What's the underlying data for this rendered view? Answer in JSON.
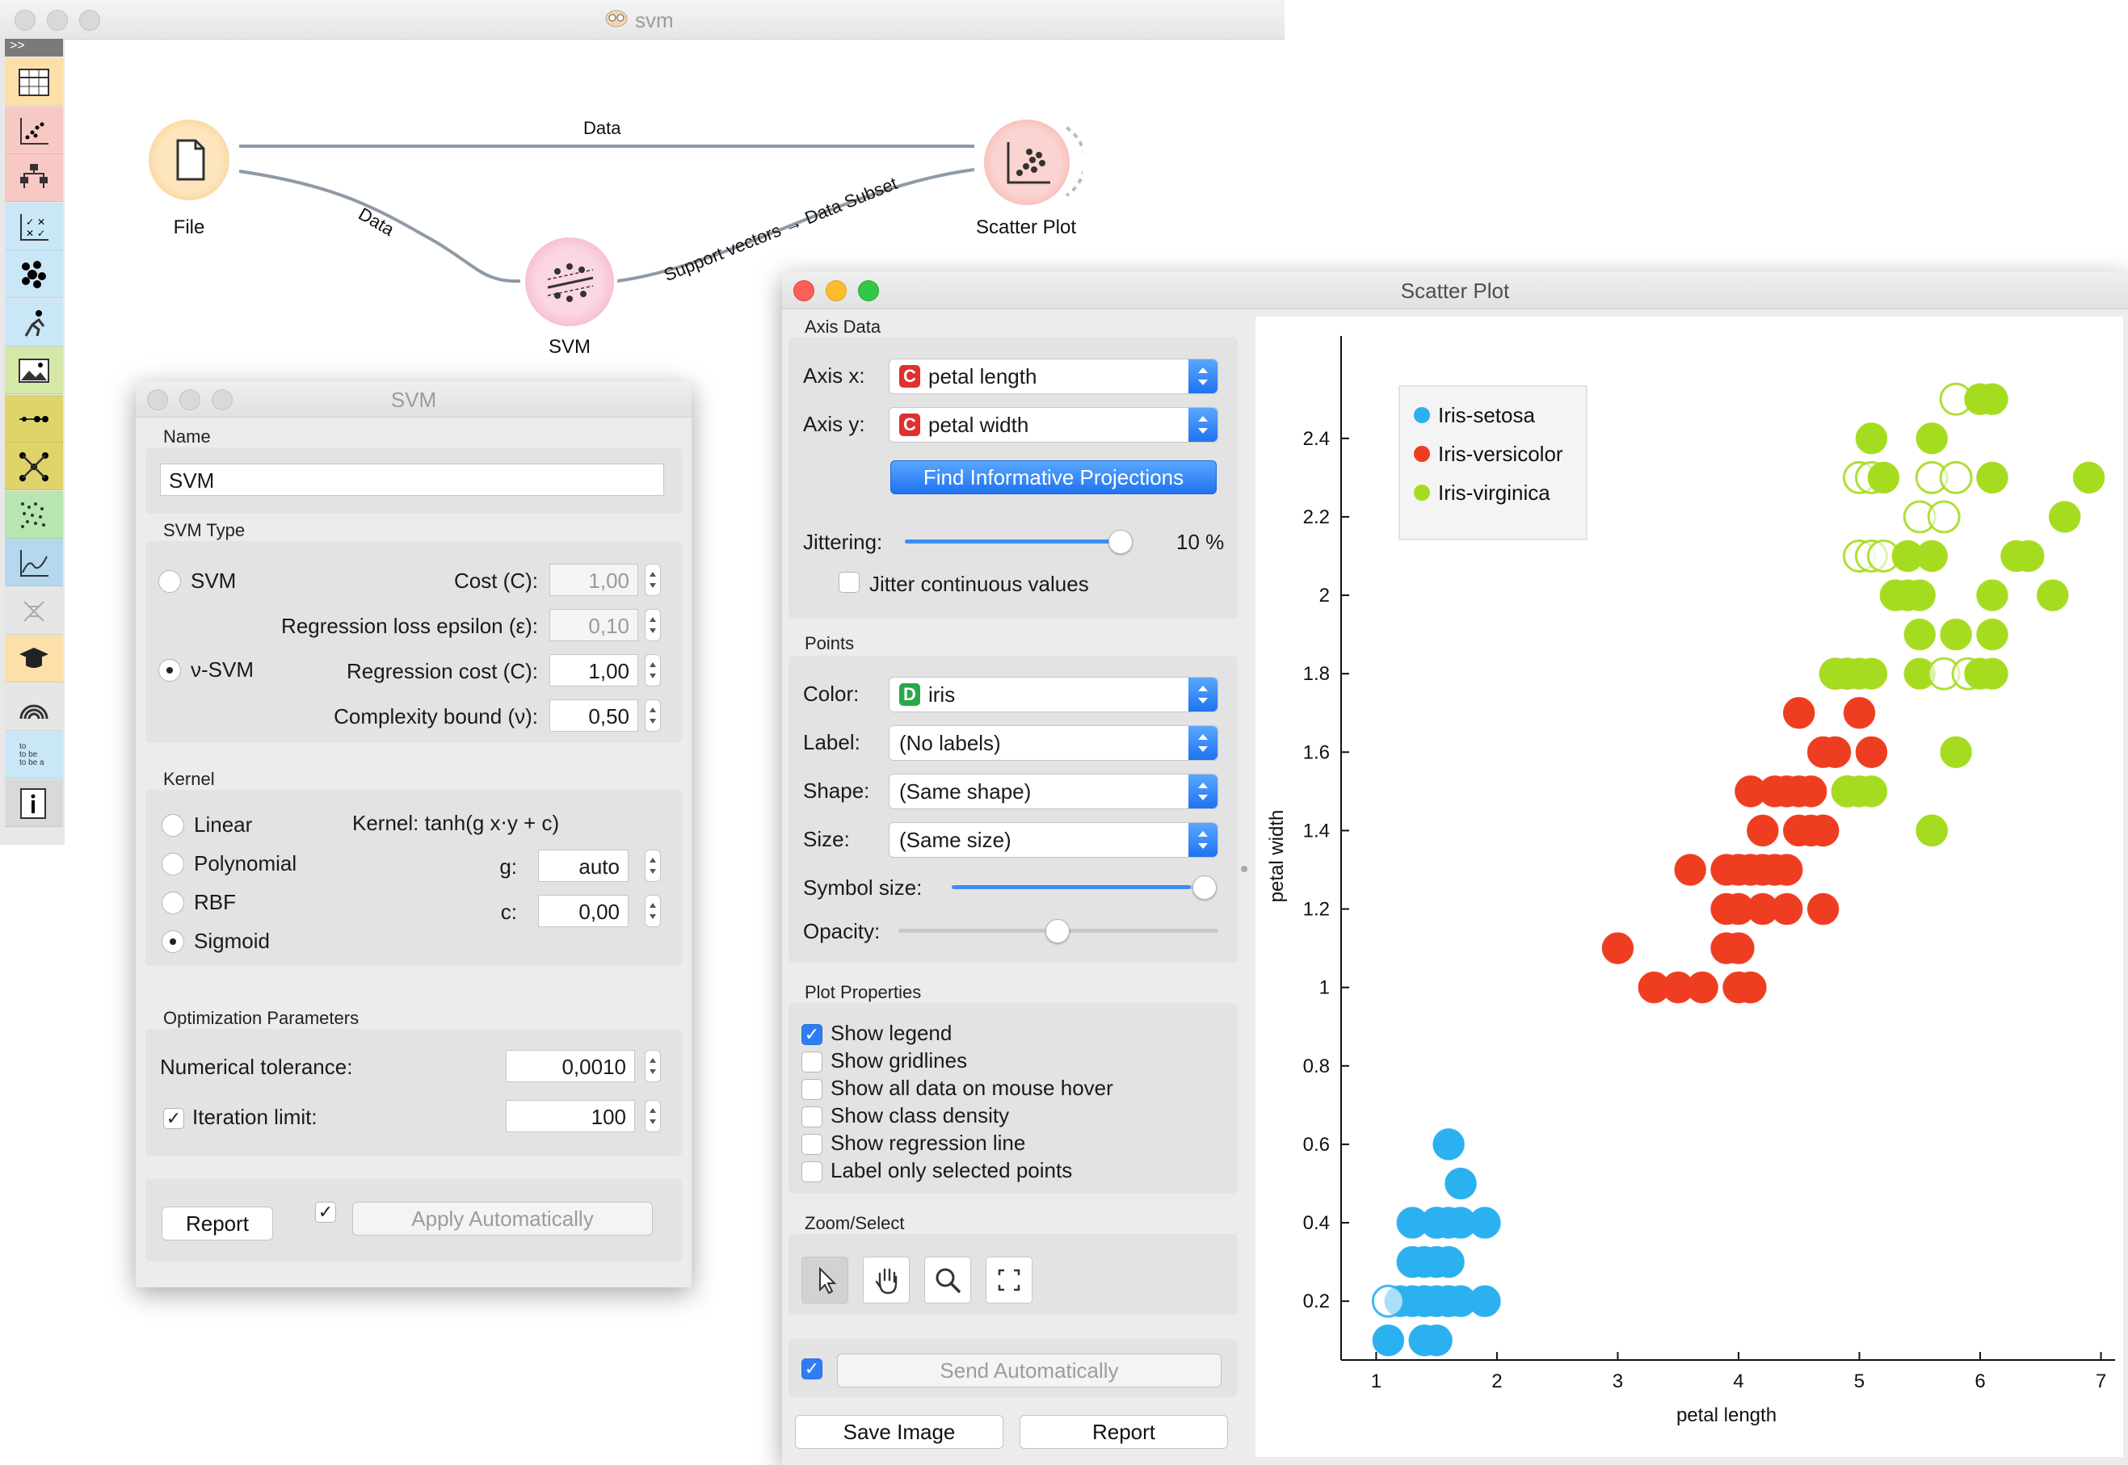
{
  "canvas_window": {
    "title": "svm",
    "nodes": [
      {
        "id": "file",
        "label": "File"
      },
      {
        "id": "svm",
        "label": "SVM"
      },
      {
        "id": "scatter",
        "label": "Scatter Plot"
      }
    ],
    "links": {
      "file_scatter": "Data",
      "file_svm": "Data",
      "svm_scatter": "Support vectors → Data Subset"
    },
    "toolbox_icons": [
      "table-icon",
      "scatter-icon",
      "tree-icon",
      "confusion-icon",
      "bubble-icon",
      "person-icon",
      "image-icon",
      "line-icon",
      "network-icon",
      "dots-icon",
      "line-chart-icon",
      "dna-icon",
      "graduation-cap-icon",
      "rainbow-icon",
      "text-icon",
      "info-icon"
    ],
    "toolbox_colors": [
      "#fbe0a9",
      "#f8c8c5",
      "#f8c8c5",
      "#c9e7f7",
      "#c9e7f7",
      "#c9e7f7",
      "#d6e8a8",
      "#ded46a",
      "#ded46a",
      "#b7e6b0",
      "#b5d8ee",
      "#e6e6e6",
      "#fbe0a9",
      "#e6e6e6",
      "#c9e7f7",
      "#d9d9d9"
    ]
  },
  "svm_dialog": {
    "title": "SVM",
    "name_section": "Name",
    "name_value": "SVM",
    "type_section": "SVM Type",
    "svm_label": "SVM",
    "nu_svm_label": "ν-SVM",
    "selected_type": "ν-SVM",
    "cost_label": "Cost (C):",
    "cost_value": "1,00",
    "epsilon_label": "Regression loss epsilon (ε):",
    "epsilon_value": "0,10",
    "reg_cost_label": "Regression cost (C):",
    "reg_cost_value": "1,00",
    "nu_label": "Complexity bound (ν):",
    "nu_value": "0,50",
    "kernel_section": "Kernel",
    "kernels": [
      "Linear",
      "Polynomial",
      "RBF",
      "Sigmoid"
    ],
    "selected_kernel": "Sigmoid",
    "kernel_formula": "Kernel: tanh(g x⋅y + c)",
    "g_label": "g:",
    "g_value": "auto",
    "c_label": "c:",
    "c_value": "0,00",
    "opt_section": "Optimization Parameters",
    "tol_label": "Numerical tolerance:",
    "tol_value": "0,0010",
    "iter_label": "Iteration limit:",
    "iter_checked": "✓",
    "iter_value": "100",
    "report_btn": "Report",
    "apply_check": "✓",
    "apply_btn": "Apply Automatically"
  },
  "scatter_dialog": {
    "title": "Scatter Plot",
    "axis_section": "Axis Data",
    "axis_x_label": "Axis x:",
    "axis_x_value": "petal length",
    "axis_y_label": "Axis y:",
    "axis_y_value": "petal width",
    "continuous_badge": "C",
    "discrete_badge": "D",
    "find_btn": "Find Informative Projections",
    "jitter_label": "Jittering:",
    "jitter_value": "10 %",
    "jitter_cont_label": "Jitter continuous values",
    "points_section": "Points",
    "color_label": "Color:",
    "color_value": "iris",
    "label_label": "Label:",
    "label_value": "(No labels)",
    "shape_label": "Shape:",
    "shape_value": "(Same shape)",
    "size_label": "Size:",
    "size_value": "(Same size)",
    "symbol_size_label": "Symbol size:",
    "opacity_label": "Opacity:",
    "plot_props_section": "Plot Properties",
    "plot_options": [
      {
        "label": "Show legend",
        "checked": true
      },
      {
        "label": "Show gridlines",
        "checked": false
      },
      {
        "label": "Show all data on mouse hover",
        "checked": false
      },
      {
        "label": "Show class density",
        "checked": false
      },
      {
        "label": "Show regression line",
        "checked": false
      },
      {
        "label": "Label only selected points",
        "checked": false
      }
    ],
    "zoom_section": "Zoom/Select",
    "zoom_tools": [
      "pointer-icon",
      "hand-icon",
      "zoom-icon",
      "fit-icon"
    ],
    "send_check": "✓",
    "send_btn": "Send Automatically",
    "save_btn": "Save Image",
    "report_btn": "Report"
  },
  "chart_data": {
    "type": "scatter",
    "xlabel": "petal length",
    "ylabel": "petal width",
    "xlim": [
      0.75,
      7.05
    ],
    "ylim": [
      0.05,
      2.62
    ],
    "xticks": [
      1,
      2,
      3,
      4,
      5,
      6,
      7
    ],
    "yticks": [
      0.2,
      0.4,
      0.6,
      0.8,
      1,
      1.2,
      1.4,
      1.6,
      1.8,
      2,
      2.2,
      2.4
    ],
    "ytick_labels": [
      "0.2",
      "0.4",
      "0.6",
      "0.8",
      "1",
      "1.2",
      "1.4",
      "1.6",
      "1.8",
      "2",
      "2.2",
      "2.4"
    ],
    "legend": "top-left",
    "grid": false,
    "series": [
      {
        "name": "Iris-setosa",
        "color": "#2bb0f0",
        "x": [
          1.1,
          1.2,
          1.3,
          1.4,
          1.4,
          1.5,
          1.6,
          1.7,
          1.9,
          1.3,
          1.4,
          1.5,
          1.6,
          1.5,
          1.7,
          1.3,
          1.5,
          1.6,
          1.9,
          1.6,
          1.7,
          1.6,
          1.1,
          1.4,
          1.5
        ],
        "y": [
          0.1,
          0.2,
          0.2,
          0.2,
          0.2,
          0.2,
          0.2,
          0.2,
          0.2,
          0.3,
          0.3,
          0.3,
          0.3,
          0.4,
          0.4,
          0.4,
          0.4,
          0.4,
          0.4,
          0.6,
          0.5,
          0.2,
          0.2,
          0.1,
          0.1
        ],
        "open": [
          false,
          false,
          false,
          false,
          false,
          false,
          false,
          false,
          false,
          false,
          false,
          false,
          false,
          false,
          false,
          false,
          false,
          false,
          false,
          false,
          false,
          false,
          true,
          false,
          false
        ]
      },
      {
        "name": "Iris-versicolor",
        "color": "#ee3d20",
        "x": [
          3.0,
          3.3,
          3.5,
          3.7,
          4.0,
          4.1,
          3.9,
          4.0,
          4.3,
          3.6,
          3.9,
          4.0,
          4.1,
          4.2,
          4.4,
          3.9,
          4.0,
          4.2,
          4.4,
          4.7,
          4.2,
          4.5,
          4.6,
          4.7,
          4.1,
          4.3,
          4.4,
          4.5,
          4.6,
          4.7,
          4.8,
          4.9,
          4.5,
          4.7,
          4.9,
          5.0,
          5.1,
          4.8
        ],
        "y": [
          1.1,
          1.0,
          1.0,
          1.0,
          1.0,
          1.0,
          1.1,
          1.1,
          1.3,
          1.3,
          1.3,
          1.3,
          1.3,
          1.3,
          1.3,
          1.2,
          1.2,
          1.2,
          1.2,
          1.2,
          1.4,
          1.4,
          1.4,
          1.4,
          1.5,
          1.5,
          1.5,
          1.5,
          1.5,
          1.6,
          1.6,
          1.8,
          1.7,
          1.4,
          1.5,
          1.7,
          1.6,
          1.8
        ],
        "open": [
          false,
          false,
          false,
          false,
          false,
          false,
          false,
          false,
          false,
          false,
          false,
          false,
          false,
          false,
          false,
          false,
          false,
          false,
          false,
          false,
          false,
          false,
          false,
          false,
          false,
          false,
          false,
          false,
          false,
          false,
          false,
          false,
          false,
          false,
          false,
          false,
          false,
          false
        ]
      },
      {
        "name": "Iris-virginica",
        "color": "#a6dc20",
        "x": [
          5.8,
          6.0,
          6.1,
          5.1,
          5.6,
          5.0,
          5.1,
          5.2,
          5.6,
          5.8,
          6.1,
          6.9,
          5.5,
          5.7,
          6.7,
          5.0,
          5.1,
          5.2,
          5.4,
          5.6,
          6.3,
          5.3,
          5.4,
          5.5,
          6.1,
          6.6,
          4.8,
          4.9,
          5.0,
          5.1,
          5.5,
          5.7,
          5.9,
          6.0,
          6.1,
          4.9,
          5.0,
          5.1,
          5.8,
          5.6,
          6.1,
          6.4,
          5.5,
          5.8,
          5.6
        ],
        "y": [
          2.5,
          2.5,
          2.5,
          2.4,
          2.4,
          2.3,
          2.3,
          2.3,
          2.3,
          2.3,
          2.3,
          2.3,
          2.2,
          2.2,
          2.2,
          2.1,
          2.1,
          2.1,
          2.1,
          2.1,
          2.1,
          2.0,
          2.0,
          2.0,
          2.0,
          2.0,
          1.8,
          1.8,
          1.8,
          1.8,
          1.8,
          1.8,
          1.8,
          1.8,
          1.8,
          1.5,
          1.5,
          1.5,
          1.6,
          1.4,
          1.9,
          2.1,
          1.9,
          1.9,
          1.4
        ],
        "open": [
          true,
          false,
          false,
          false,
          false,
          true,
          true,
          false,
          true,
          true,
          false,
          false,
          true,
          true,
          false,
          true,
          true,
          true,
          false,
          false,
          false,
          false,
          false,
          false,
          false,
          false,
          false,
          false,
          false,
          false,
          false,
          true,
          true,
          false,
          false,
          false,
          false,
          false,
          false,
          false,
          false,
          false,
          false,
          false,
          false
        ]
      }
    ]
  }
}
